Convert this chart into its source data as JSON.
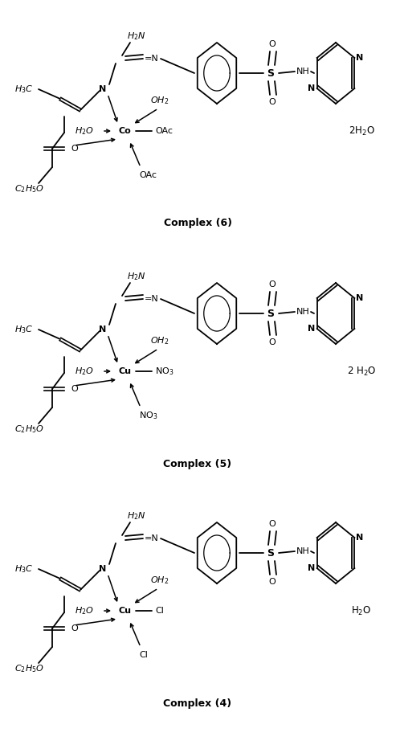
{
  "background": "#ffffff",
  "complexes": [
    {
      "label": "Complex (4)",
      "metal": "Cu",
      "lig_right": "Cl",
      "lig_bottom": "Cl",
      "water_label": "H$_2$O",
      "ybase": 760
    },
    {
      "label": "Complex (5)",
      "metal": "Cu",
      "lig_right": "NO$_3$",
      "lig_bottom": "NO$_3$",
      "water_label": "2 H$_2$O",
      "ybase": 462
    },
    {
      "label": "Complex (6)",
      "metal": "Co",
      "lig_right": "OAc",
      "lig_bottom": "OAc",
      "water_label": "2H$_2$O",
      "ybase": 163
    }
  ]
}
